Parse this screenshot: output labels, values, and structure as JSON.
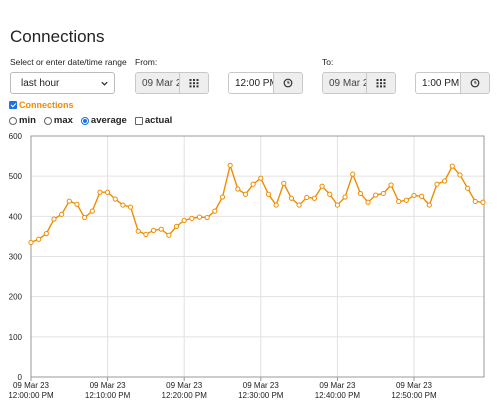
{
  "title": "Connections",
  "range": {
    "label": "Select or enter date/time range",
    "selected": "last hour"
  },
  "from": {
    "label": "From:",
    "date": "09 Mar 2",
    "time": "12:00 PM"
  },
  "to": {
    "label": "To:",
    "date": "09 Mar 2",
    "time": "1:00 PM"
  },
  "icons": {
    "calendar": "calendar-icon",
    "clock": "clock-icon",
    "dropdown": "chevron-down-icon"
  },
  "series_toggle": {
    "label": "Connections",
    "checked": true,
    "color": "#f08c00"
  },
  "options": [
    {
      "label": "min",
      "type": "radio",
      "checked": false
    },
    {
      "label": "max",
      "type": "radio",
      "checked": false
    },
    {
      "label": "average",
      "type": "radio",
      "checked": true
    },
    {
      "label": "actual",
      "type": "checkbox",
      "checked": false
    }
  ],
  "chart_data": {
    "type": "line",
    "x_ticks": [
      {
        "date": "09 Mar 23",
        "time": "12:00:00 PM"
      },
      {
        "date": "09 Mar 23",
        "time": "12:10:00 PM"
      },
      {
        "date": "09 Mar 23",
        "time": "12:20:00 PM"
      },
      {
        "date": "09 Mar 23",
        "time": "12:30:00 PM"
      },
      {
        "date": "09 Mar 23",
        "time": "12:40:00 PM"
      },
      {
        "date": "09 Mar 23",
        "time": "12:50:00 PM"
      }
    ],
    "y_ticks": [
      "0",
      "100",
      "200",
      "300",
      "400",
      "500",
      "600"
    ],
    "ylim": [
      0,
      600
    ],
    "xlim_minutes": [
      0,
      59
    ],
    "grid": true,
    "series": [
      {
        "color": "#f08c00",
        "values": [
          335,
          343,
          357,
          393,
          405,
          438,
          430,
          397,
          413,
          460,
          460,
          443,
          428,
          423,
          363,
          355,
          365,
          368,
          353,
          375,
          390,
          395,
          398,
          397,
          413,
          448,
          527,
          468,
          455,
          480,
          495,
          455,
          428,
          482,
          445,
          428,
          447,
          445,
          475,
          455,
          428,
          448,
          505,
          457,
          435,
          453,
          457,
          478,
          437,
          440,
          452,
          450,
          428,
          480,
          488,
          525,
          503,
          470,
          437,
          435
        ]
      }
    ]
  }
}
